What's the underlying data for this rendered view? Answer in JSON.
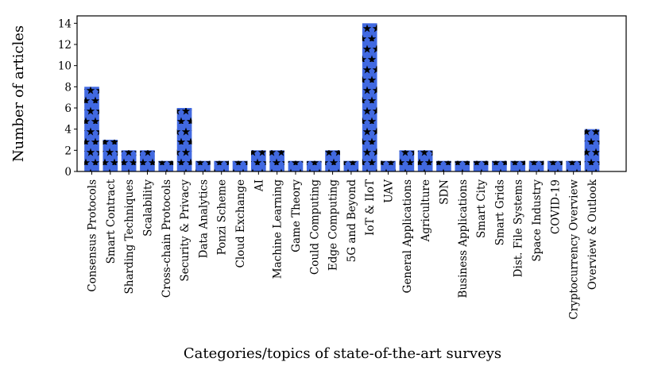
{
  "chart_data": {
    "type": "bar",
    "title": "",
    "xlabel": "Categories/topics of state-of-the-art surveys",
    "ylabel": "Number of articles",
    "ylim": [
      0,
      14.7
    ],
    "yticks": [
      0,
      2,
      4,
      6,
      8,
      10,
      12,
      14
    ],
    "grid": false,
    "bar_color": "#4169e1",
    "hatch": "star-black",
    "categories": [
      "Consensus Protocols",
      "Smart Contract",
      "Sharding Techniques",
      "Scalability",
      "Cross-chain Protocols",
      "Security & Privacy",
      "Data Analytics",
      "Ponzi Scheme",
      "Cloud Exchange",
      "AI",
      "Machine Learning",
      "Game Theory",
      "Could Computing",
      "Edge Computing",
      "5G and Beyond",
      "IoT & IIoT",
      "UAV",
      "General Applications",
      "Agriculture",
      "SDN",
      "Business Applications",
      "Smart City",
      "Smart Grids",
      "Dist. File Systems",
      "Space Industry",
      "COVID-19",
      "Cryptocurrency Overview",
      "Overview & Outlook"
    ],
    "values": [
      8,
      3,
      2,
      2,
      1,
      6,
      1,
      1,
      1,
      2,
      2,
      1,
      1,
      2,
      1,
      14,
      1,
      2,
      2,
      1,
      1,
      1,
      1,
      1,
      1,
      1,
      1,
      4
    ]
  }
}
